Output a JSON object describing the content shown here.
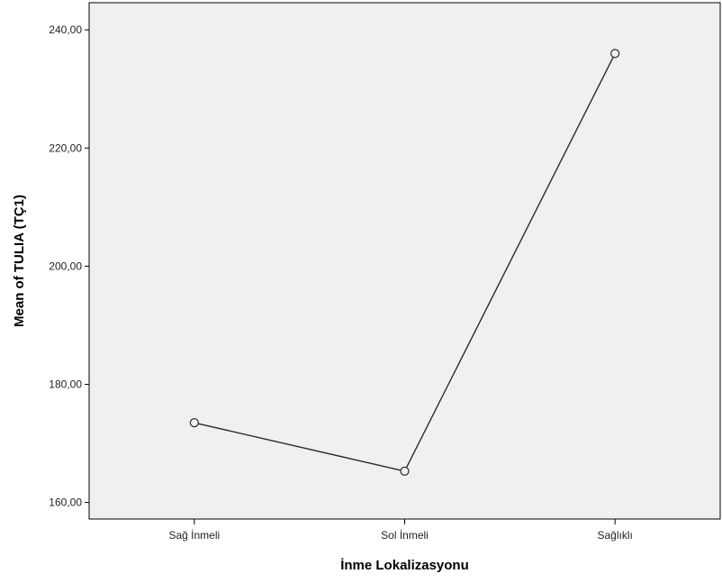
{
  "chart_data": {
    "type": "line",
    "title": "",
    "xlabel": "İnme Lokalizasyonu",
    "ylabel": "Mean of TULIA (TÇ1)",
    "categories": [
      "Sağ İnmeli",
      "Sol İnmeli",
      "Sağlıklı"
    ],
    "series": [
      {
        "values": [
          173.5,
          165.3,
          236.0
        ]
      }
    ],
    "ylim": [
      157.2,
      244.6
    ],
    "yticks": [
      160,
      180,
      200,
      220,
      240
    ],
    "ytick_labels": [
      "160,00",
      "180,00",
      "200,00",
      "220,00",
      "240,00"
    ],
    "grid": false,
    "legend": "none",
    "colors": {
      "plot_background": "#f0f0f0",
      "line": "#2b2b2b",
      "marker_face": "#f0f0f0",
      "axis": "#000000"
    }
  }
}
